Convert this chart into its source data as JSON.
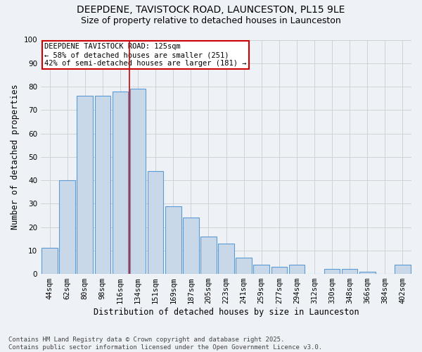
{
  "title_line1": "DEEPDENE, TAVISTOCK ROAD, LAUNCESTON, PL15 9LE",
  "title_line2": "Size of property relative to detached houses in Launceston",
  "xlabel": "Distribution of detached houses by size in Launceston",
  "ylabel": "Number of detached properties",
  "categories": [
    "44sqm",
    "62sqm",
    "80sqm",
    "98sqm",
    "116sqm",
    "134sqm",
    "151sqm",
    "169sqm",
    "187sqm",
    "205sqm",
    "223sqm",
    "241sqm",
    "259sqm",
    "277sqm",
    "294sqm",
    "312sqm",
    "330sqm",
    "348sqm",
    "366sqm",
    "384sqm",
    "402sqm"
  ],
  "values": [
    11,
    40,
    76,
    76,
    78,
    79,
    44,
    29,
    24,
    16,
    13,
    7,
    4,
    3,
    4,
    0,
    2,
    2,
    1,
    0,
    4
  ],
  "bar_color": "#c8d8e8",
  "bar_edge_color": "#5b9bd5",
  "highlight_index": 5,
  "highlight_line_color": "#cc0000",
  "annotation_box_text": "DEEPDENE TAVISTOCK ROAD: 125sqm\n← 58% of detached houses are smaller (251)\n42% of semi-detached houses are larger (181) →",
  "annotation_box_color": "#ffffff",
  "annotation_box_edge_color": "#cc0000",
  "ylim": [
    0,
    100
  ],
  "yticks": [
    0,
    10,
    20,
    30,
    40,
    50,
    60,
    70,
    80,
    90,
    100
  ],
  "grid_color": "#cccccc",
  "background_color": "#eef2f7",
  "footer_text": "Contains HM Land Registry data © Crown copyright and database right 2025.\nContains public sector information licensed under the Open Government Licence v3.0.",
  "title_fontsize": 10,
  "subtitle_fontsize": 9,
  "axis_label_fontsize": 8.5,
  "tick_fontsize": 7.5,
  "annotation_fontsize": 7.5,
  "footer_fontsize": 6.5
}
